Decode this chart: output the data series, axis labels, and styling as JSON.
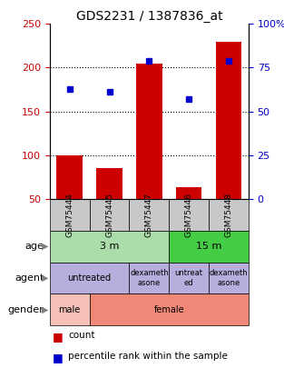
{
  "title": "GDS2231 / 1387836_at",
  "samples": [
    "GSM75444",
    "GSM75445",
    "GSM75447",
    "GSM75446",
    "GSM75448"
  ],
  "counts": [
    100,
    85,
    205,
    63,
    230
  ],
  "percentiles": [
    63,
    61,
    79,
    57,
    79
  ],
  "ylim_left": [
    50,
    250
  ],
  "ylim_right": [
    0,
    100
  ],
  "yticks_left": [
    50,
    100,
    150,
    200,
    250
  ],
  "yticks_right": [
    0,
    25,
    50,
    75,
    100
  ],
  "ytick_labels_right": [
    "0",
    "25",
    "50",
    "75",
    "100%"
  ],
  "bar_color": "#cc0000",
  "dot_color": "#0000cc",
  "age_color_3m": "#aaddaa",
  "age_color_15m": "#44cc44",
  "agent_color": "#b8aedd",
  "gender_color_male": "#f4c0b8",
  "gender_color_female": "#f08878",
  "sample_header_color": "#c8c8c8",
  "label_age": "age",
  "label_agent": "agent",
  "label_gender": "gender",
  "legend_count": "count",
  "legend_percentile": "percentile rank within the sample",
  "title_fontsize": 10,
  "tick_fontsize": 8,
  "label_fontsize": 8
}
